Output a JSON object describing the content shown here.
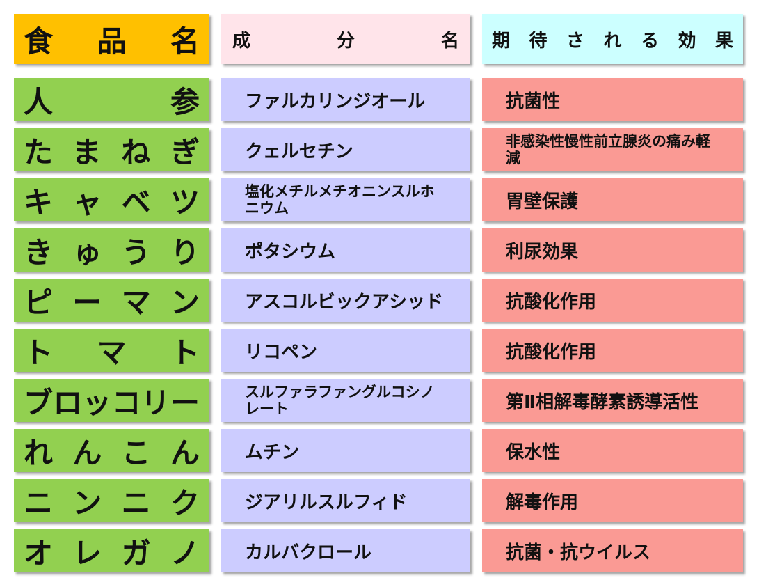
{
  "header": {
    "food": "食品名",
    "component": "成分名",
    "effect": "期待される効果"
  },
  "rows": [
    {
      "food": "人参",
      "component": "ファルカリンジオール",
      "effect": "抗菌性"
    },
    {
      "food": "たまねぎ",
      "component": "クェルセチン",
      "effect": "非感染性慢性前立腺炎の痛み軽減"
    },
    {
      "food": "キャベツ",
      "component": "塩化メチルメチオニンスルホニウム",
      "effect": "胃壁保護"
    },
    {
      "food": "きゅうり",
      "component": "ポタシウム",
      "effect": "利尿効果"
    },
    {
      "food": "ピーマン",
      "component": "アスコルビックアシッド",
      "effect": "抗酸化作用"
    },
    {
      "food": "トマト",
      "component": "リコペン",
      "effect": "抗酸化作用"
    },
    {
      "food": "ブロッコリー",
      "component": "スルファラファングルコシノレート",
      "effect": "第Ⅱ相解毒酵素誘導活性"
    },
    {
      "food": "れんこん",
      "component": "ムチン",
      "effect": "保水性"
    },
    {
      "food": "ニンニク",
      "component": "ジアリルスルフィド",
      "effect": "解毒作用"
    },
    {
      "food": "オレガノ",
      "component": "カルバクロール",
      "effect": "抗菌・抗ウイルス"
    }
  ]
}
